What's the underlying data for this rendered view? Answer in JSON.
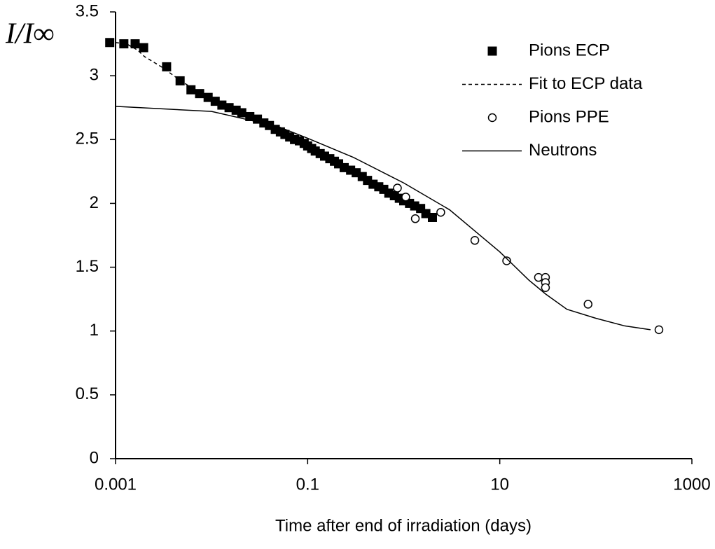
{
  "chart_data": {
    "type": "scatter",
    "y_label": "I/I∞",
    "x_label": "Time after end of irradiation (days)",
    "x_scale": "log",
    "xlim": [
      0.001,
      1000
    ],
    "xticks": [
      0.001,
      0.1,
      10,
      1000
    ],
    "ylim": [
      0,
      3.5
    ],
    "yticks": [
      0,
      0.5,
      1,
      1.5,
      2,
      2.5,
      3,
      3.5
    ],
    "grid": false,
    "legend": "upper right",
    "series": [
      {
        "name": "Pions ECP",
        "color": "#000000",
        "marker": "square",
        "x": [
          0.00087,
          0.00122,
          0.0016,
          0.00196,
          0.0034,
          0.0047,
          0.0061,
          0.0075,
          0.0092,
          0.0109,
          0.0128,
          0.0152,
          0.018,
          0.0206,
          0.025,
          0.03,
          0.035,
          0.04,
          0.046,
          0.052,
          0.058,
          0.065,
          0.073,
          0.082,
          0.092,
          0.1,
          0.11,
          0.12,
          0.135,
          0.15,
          0.17,
          0.19,
          0.21,
          0.24,
          0.28,
          0.32,
          0.37,
          0.42,
          0.48,
          0.55,
          0.62,
          0.7,
          0.8,
          0.9,
          1.0,
          1.15,
          1.3,
          1.5,
          1.7,
          1.99
        ],
        "values": [
          3.26,
          3.25,
          3.25,
          3.22,
          3.07,
          2.96,
          2.89,
          2.86,
          2.83,
          2.8,
          2.77,
          2.75,
          2.73,
          2.71,
          2.68,
          2.66,
          2.63,
          2.61,
          2.58,
          2.56,
          2.54,
          2.52,
          2.5,
          2.49,
          2.47,
          2.45,
          2.43,
          2.41,
          2.39,
          2.37,
          2.35,
          2.33,
          2.31,
          2.28,
          2.26,
          2.24,
          2.21,
          2.18,
          2.15,
          2.13,
          2.11,
          2.08,
          2.06,
          2.04,
          2.02,
          2.0,
          1.98,
          1.96,
          1.92,
          1.89
        ]
      },
      {
        "name": "Fit to ECP data",
        "color": "#000000",
        "line_style": "dashed",
        "x": [
          0.001,
          0.0013,
          0.0017,
          0.002,
          0.003,
          0.005,
          0.01,
          0.03,
          0.1,
          0.3,
          1,
          2
        ],
        "values": [
          3.26,
          3.25,
          3.2,
          3.15,
          3.07,
          2.95,
          2.81,
          2.66,
          2.45,
          2.25,
          2.02,
          1.89
        ]
      },
      {
        "name": "Pions PPE",
        "color": "#000000",
        "marker": "circle",
        "x": [
          0.86,
          1.05,
          1.32,
          2.43,
          5.5,
          11.8,
          25.3,
          29.9,
          29.9,
          29.9,
          83,
          454
        ],
        "values": [
          2.12,
          2.05,
          1.88,
          1.93,
          1.71,
          1.55,
          1.42,
          1.42,
          1.38,
          1.34,
          1.21,
          1.01
        ]
      },
      {
        "name": "Neutrons",
        "color": "#000000",
        "line_style": "solid",
        "x": [
          0.001,
          0.01,
          0.05,
          0.1,
          0.3,
          1,
          3,
          5,
          10,
          20,
          30,
          50,
          100,
          200,
          371
        ],
        "values": [
          2.76,
          2.72,
          2.6,
          2.51,
          2.36,
          2.16,
          1.95,
          1.81,
          1.62,
          1.4,
          1.29,
          1.17,
          1.1,
          1.04,
          1.01
        ]
      }
    ]
  }
}
